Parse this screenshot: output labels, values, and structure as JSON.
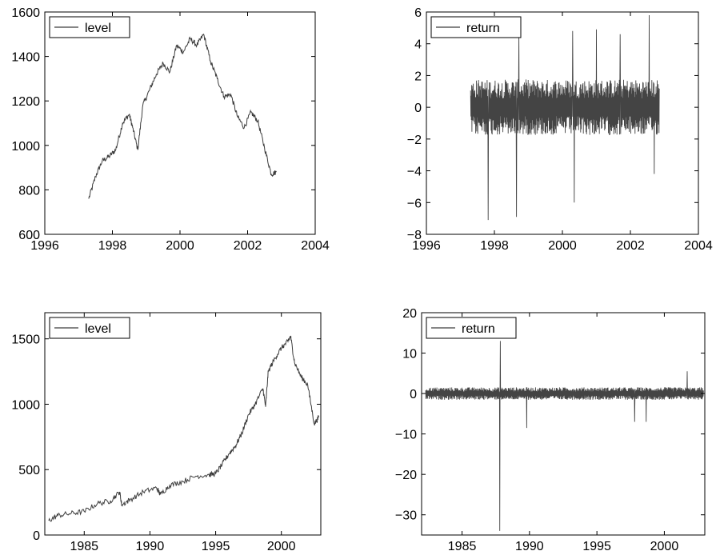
{
  "colors": {
    "series": "#3d3d3d",
    "axis": "#000000",
    "background": "#ffffff"
  },
  "chart_data": [
    {
      "type": "line",
      "panel": "top-left",
      "series": [
        {
          "name": "level"
        }
      ],
      "legend_position": "top-left",
      "xlim": [
        1996,
        2004
      ],
      "ylim": [
        600,
        1600
      ],
      "x_ticks": [
        "1996",
        "1998",
        "2000",
        "2002",
        "2004"
      ],
      "y_ticks": [
        "600",
        "800",
        "1000",
        "1200",
        "1400",
        "1600"
      ],
      "x_tick_values": [
        1996,
        1998,
        2000,
        2002,
        2004
      ],
      "y_tick_values": [
        600,
        800,
        1000,
        1200,
        1400,
        1600
      ],
      "x": [
        1997.3,
        1997.5,
        1997.7,
        1997.9,
        1998.1,
        1998.3,
        1998.5,
        1998.6,
        1998.75,
        1998.9,
        1999.1,
        1999.3,
        1999.5,
        1999.7,
        1999.9,
        2000.1,
        2000.3,
        2000.5,
        2000.7,
        2000.9,
        2001.1,
        2001.3,
        2001.5,
        2001.7,
        2001.9,
        2002.1,
        2002.3,
        2002.5,
        2002.7,
        2002.85
      ],
      "values": [
        760,
        860,
        930,
        950,
        980,
        1100,
        1140,
        1080,
        980,
        1180,
        1250,
        1320,
        1370,
        1330,
        1450,
        1420,
        1480,
        1450,
        1500,
        1380,
        1300,
        1220,
        1230,
        1130,
        1080,
        1150,
        1110,
        990,
        870,
        880
      ]
    },
    {
      "type": "line",
      "panel": "top-right",
      "series": [
        {
          "name": "return"
        }
      ],
      "legend_position": "top-left",
      "xlim": [
        1996,
        2004
      ],
      "ylim": [
        -8,
        6
      ],
      "x_ticks": [
        "1996",
        "1998",
        "2000",
        "2002",
        "2004"
      ],
      "y_ticks": [
        "−8",
        "−6",
        "−4",
        "−2",
        "0",
        "2",
        "4",
        "6"
      ],
      "x_tick_values": [
        1996,
        1998,
        2000,
        2002,
        2004
      ],
      "y_tick_values": [
        -8,
        -6,
        -4,
        -2,
        0,
        2,
        4,
        6
      ],
      "x_range": [
        1997.3,
        2002.85
      ],
      "typical_amplitude": 1.6,
      "spikes": [
        {
          "x": 1997.82,
          "y": -7.1
        },
        {
          "x": 1998.65,
          "y": -6.9
        },
        {
          "x": 1998.72,
          "y": 4.6
        },
        {
          "x": 2000.3,
          "y": 4.8
        },
        {
          "x": 2000.35,
          "y": -6.0
        },
        {
          "x": 2001.0,
          "y": 4.9
        },
        {
          "x": 2001.7,
          "y": 4.6
        },
        {
          "x": 2002.55,
          "y": 5.8
        },
        {
          "x": 2002.7,
          "y": -4.2
        }
      ]
    },
    {
      "type": "line",
      "panel": "bottom-left",
      "series": [
        {
          "name": "level"
        }
      ],
      "legend_position": "top-left",
      "xlim": [
        1982,
        2003
      ],
      "ylim": [
        0,
        1700
      ],
      "x_ticks": [
        "1985",
        "1990",
        "1995",
        "2000"
      ],
      "y_ticks": [
        "0",
        "500",
        "1000",
        "1500"
      ],
      "x_tick_values": [
        1985,
        1990,
        1995,
        2000
      ],
      "y_tick_values": [
        0,
        500,
        1000,
        1500
      ],
      "x": [
        1982.3,
        1983,
        1984,
        1985,
        1986,
        1987,
        1987.7,
        1987.85,
        1988.5,
        1989.5,
        1990.5,
        1990.8,
        1991.5,
        1992.5,
        1993.5,
        1994.5,
        1995,
        1995.5,
        1996,
        1996.5,
        1997,
        1997.5,
        1998,
        1998.6,
        1998.8,
        1999,
        1999.5,
        2000,
        2000.5,
        2000.7,
        2001,
        2001.5,
        2002,
        2002.5,
        2002.85
      ],
      "values": [
        110,
        150,
        165,
        180,
        240,
        260,
        330,
        230,
        270,
        330,
        360,
        310,
        380,
        410,
        450,
        460,
        470,
        540,
        620,
        680,
        780,
        920,
        1000,
        1120,
        980,
        1250,
        1350,
        1430,
        1480,
        1520,
        1320,
        1210,
        1150,
        850,
        900
      ]
    },
    {
      "type": "line",
      "panel": "bottom-right",
      "series": [
        {
          "name": "return"
        }
      ],
      "legend_position": "top-left",
      "xlim": [
        1982,
        2003
      ],
      "ylim": [
        -35,
        20
      ],
      "x_ticks": [
        "1985",
        "1990",
        "1995",
        "2000"
      ],
      "y_ticks": [
        "−30",
        "−20",
        "−10",
        "0",
        "10",
        "20"
      ],
      "x_tick_values": [
        1985,
        1990,
        1995,
        2000
      ],
      "y_tick_values": [
        -30,
        -20,
        -10,
        0,
        10,
        20
      ],
      "x_range": [
        1982.3,
        2002.9
      ],
      "typical_amplitude": 1.4,
      "spikes": [
        {
          "x": 1987.8,
          "y": -34
        },
        {
          "x": 1987.83,
          "y": 13
        },
        {
          "x": 1989.8,
          "y": -8.5
        },
        {
          "x": 1997.8,
          "y": -7
        },
        {
          "x": 1998.65,
          "y": -7
        },
        {
          "x": 2001.7,
          "y": 5.5
        }
      ]
    }
  ]
}
